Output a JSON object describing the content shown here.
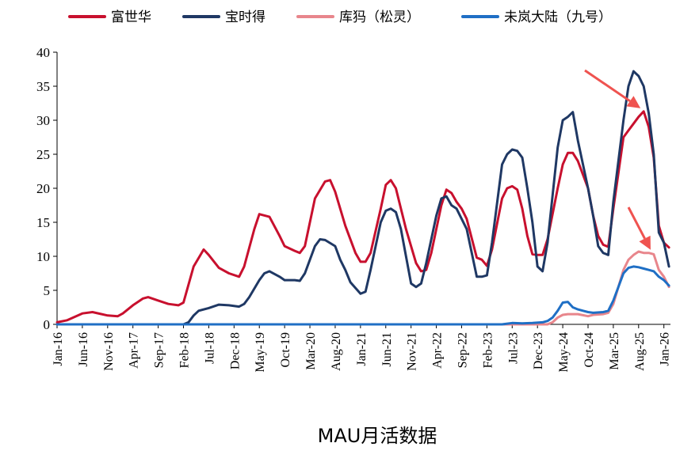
{
  "chart_data": {
    "type": "line",
    "caption": "MAU月活数据",
    "ylim": [
      0,
      40
    ],
    "yticks": [
      0,
      5,
      10,
      15,
      20,
      25,
      30,
      35,
      40
    ],
    "x_start": "Jan-16",
    "x_end": "Jan-26",
    "xticks": [
      "Jan-16",
      "Jun-16",
      "Nov-16",
      "Apr-17",
      "Sep-17",
      "Feb-18",
      "Jul-18",
      "Dec-18",
      "May-19",
      "Oct-19",
      "Mar-20",
      "Aug-20",
      "Jan-21",
      "Jun-21",
      "Nov-21",
      "Apr-22",
      "Sep-22",
      "Feb-23",
      "Jul-23",
      "Dec-23",
      "May-24",
      "Oct-24",
      "Mar-25",
      "Aug-25",
      "Jan-26"
    ],
    "legend_position": "top",
    "grid": false,
    "series": [
      {
        "name": "富世华",
        "color": "#c8102e",
        "points": [
          [
            "Jan-16",
            0.3
          ],
          [
            "Mar-16",
            0.6
          ],
          [
            "Jun-16",
            1.6
          ],
          [
            "Aug-16",
            1.8
          ],
          [
            "Nov-16",
            1.3
          ],
          [
            "Jan-17",
            1.2
          ],
          [
            "Feb-17",
            1.6
          ],
          [
            "Apr-17",
            2.8
          ],
          [
            "Jun-17",
            3.8
          ],
          [
            "Jul-17",
            4.0
          ],
          [
            "Sep-17",
            3.5
          ],
          [
            "Nov-17",
            3.0
          ],
          [
            "Jan-18",
            2.8
          ],
          [
            "Feb-18",
            3.2
          ],
          [
            "Apr-18",
            8.5
          ],
          [
            "Jun-18",
            11.0
          ],
          [
            "Jul-18",
            10.2
          ],
          [
            "Sep-18",
            8.3
          ],
          [
            "Nov-18",
            7.5
          ],
          [
            "Jan-19",
            7.0
          ],
          [
            "Feb-19",
            8.5
          ],
          [
            "Apr-19",
            14.0
          ],
          [
            "May-19",
            16.2
          ],
          [
            "Jul-19",
            15.8
          ],
          [
            "Sep-19",
            13.0
          ],
          [
            "Oct-19",
            11.5
          ],
          [
            "Dec-19",
            10.8
          ],
          [
            "Jan-20",
            10.5
          ],
          [
            "Feb-20",
            11.5
          ],
          [
            "Apr-20",
            18.5
          ],
          [
            "Jun-20",
            21.0
          ],
          [
            "Jul-20",
            21.2
          ],
          [
            "Aug-20",
            19.5
          ],
          [
            "Oct-20",
            14.5
          ],
          [
            "Dec-20",
            10.5
          ],
          [
            "Jan-21",
            9.2
          ],
          [
            "Feb-21",
            9.2
          ],
          [
            "Mar-21",
            10.5
          ],
          [
            "May-21",
            17.0
          ],
          [
            "Jun-21",
            20.5
          ],
          [
            "Jul-21",
            21.2
          ],
          [
            "Aug-21",
            20.0
          ],
          [
            "Oct-21",
            14.0
          ],
          [
            "Dec-21",
            9.0
          ],
          [
            "Jan-22",
            7.8
          ],
          [
            "Feb-22",
            8.0
          ],
          [
            "Mar-22",
            10.5
          ],
          [
            "May-22",
            17.5
          ],
          [
            "Jun-22",
            19.8
          ],
          [
            "Jul-22",
            19.3
          ],
          [
            "Aug-22",
            18.0
          ],
          [
            "Sep-22",
            17.0
          ],
          [
            "Oct-22",
            15.5
          ],
          [
            "Dec-22",
            9.8
          ],
          [
            "Jan-23",
            9.5
          ],
          [
            "Feb-23",
            8.6
          ],
          [
            "Mar-23",
            11.0
          ],
          [
            "May-23",
            18.5
          ],
          [
            "Jun-23",
            20.0
          ],
          [
            "Jul-23",
            20.3
          ],
          [
            "Aug-23",
            19.8
          ],
          [
            "Sep-23",
            17.0
          ],
          [
            "Oct-23",
            13.0
          ],
          [
            "Nov-23",
            10.3
          ],
          [
            "Dec-23",
            10.2
          ],
          [
            "Jan-24",
            10.2
          ],
          [
            "Feb-24",
            12.5
          ],
          [
            "Apr-24",
            20.0
          ],
          [
            "May-24",
            23.5
          ],
          [
            "Jun-24",
            25.2
          ],
          [
            "Jul-24",
            25.2
          ],
          [
            "Aug-24",
            24.0
          ],
          [
            "Oct-24",
            20.0
          ],
          [
            "Nov-24",
            16.0
          ],
          [
            "Dec-24",
            13.0
          ],
          [
            "Jan-25",
            11.7
          ],
          [
            "Feb-25",
            11.4
          ],
          [
            "Mar-25",
            17.0
          ],
          [
            "May-25",
            27.5
          ],
          [
            "Jun-25",
            28.5
          ],
          [
            "Jul-25",
            29.5
          ],
          [
            "Aug-25",
            30.5
          ],
          [
            "Sep-25",
            31.3
          ],
          [
            "Oct-25",
            29.0
          ],
          [
            "Nov-25",
            24.5
          ],
          [
            "Dec-25",
            14.5
          ],
          [
            "Jan-26",
            12.0
          ],
          [
            "Feb-26",
            11.3
          ]
        ]
      },
      {
        "name": "宝时得",
        "color": "#1f3864",
        "points": [
          [
            "Jan-16",
            0
          ],
          [
            "Feb-18",
            0
          ],
          [
            "Mar-18",
            0.3
          ],
          [
            "Apr-18",
            1.3
          ],
          [
            "May-18",
            2.0
          ],
          [
            "Jul-18",
            2.4
          ],
          [
            "Sep-18",
            2.9
          ],
          [
            "Nov-18",
            2.8
          ],
          [
            "Jan-19",
            2.6
          ],
          [
            "Feb-19",
            3.0
          ],
          [
            "Mar-19",
            4.0
          ],
          [
            "May-19",
            6.5
          ],
          [
            "Jun-19",
            7.5
          ],
          [
            "Jul-19",
            7.8
          ],
          [
            "Sep-19",
            7.0
          ],
          [
            "Oct-19",
            6.5
          ],
          [
            "Dec-19",
            6.5
          ],
          [
            "Jan-20",
            6.4
          ],
          [
            "Feb-20",
            7.5
          ],
          [
            "Apr-20",
            11.5
          ],
          [
            "May-20",
            12.5
          ],
          [
            "Jun-20",
            12.4
          ],
          [
            "Aug-20",
            11.5
          ],
          [
            "Sep-20",
            9.5
          ],
          [
            "Oct-20",
            8.0
          ],
          [
            "Nov-20",
            6.2
          ],
          [
            "Jan-21",
            4.5
          ],
          [
            "Feb-21",
            4.8
          ],
          [
            "Mar-21",
            8.0
          ],
          [
            "May-21",
            15.0
          ],
          [
            "Jun-21",
            16.7
          ],
          [
            "Jul-21",
            17.0
          ],
          [
            "Aug-21",
            16.5
          ],
          [
            "Sep-21",
            14.0
          ],
          [
            "Oct-21",
            10.0
          ],
          [
            "Nov-21",
            6.0
          ],
          [
            "Dec-21",
            5.5
          ],
          [
            "Jan-22",
            6.0
          ],
          [
            "Feb-22",
            9.0
          ],
          [
            "Apr-22",
            16.0
          ],
          [
            "May-22",
            18.5
          ],
          [
            "Jun-22",
            18.8
          ],
          [
            "Jul-22",
            17.5
          ],
          [
            "Aug-22",
            17.0
          ],
          [
            "Oct-22",
            14.0
          ],
          [
            "Dec-22",
            7.0
          ],
          [
            "Jan-23",
            7.0
          ],
          [
            "Feb-23",
            7.2
          ],
          [
            "Mar-23",
            12.0
          ],
          [
            "May-23",
            23.5
          ],
          [
            "Jun-23",
            25.0
          ],
          [
            "Jul-23",
            25.7
          ],
          [
            "Aug-23",
            25.5
          ],
          [
            "Sep-23",
            24.5
          ],
          [
            "Oct-23",
            20.0
          ],
          [
            "Nov-23",
            15.0
          ],
          [
            "Dec-23",
            8.5
          ],
          [
            "Jan-24",
            7.8
          ],
          [
            "Feb-24",
            12.0
          ],
          [
            "Apr-24",
            26.0
          ],
          [
            "May-24",
            30.0
          ],
          [
            "Jun-24",
            30.5
          ],
          [
            "Jul-24",
            31.2
          ],
          [
            "Aug-24",
            27.0
          ],
          [
            "Oct-24",
            20.0
          ],
          [
            "Nov-24",
            16.0
          ],
          [
            "Dec-24",
            11.5
          ],
          [
            "Jan-25",
            10.5
          ],
          [
            "Feb-25",
            10.2
          ],
          [
            "Mar-25",
            18.0
          ],
          [
            "May-25",
            30.0
          ],
          [
            "Jun-25",
            35.0
          ],
          [
            "Jul-25",
            37.2
          ],
          [
            "Aug-25",
            36.5
          ],
          [
            "Sep-25",
            35.0
          ],
          [
            "Oct-25",
            31.0
          ],
          [
            "Nov-25",
            25.0
          ],
          [
            "Dec-25",
            13.5
          ],
          [
            "Jan-26",
            12.0
          ],
          [
            "Feb-26",
            8.5
          ]
        ]
      },
      {
        "name": "库犸（松灵）",
        "color": "#e8868c",
        "points": [
          [
            "Jan-16",
            0
          ],
          [
            "Feb-24",
            0
          ],
          [
            "Mar-24",
            0.3
          ],
          [
            "Apr-24",
            1.0
          ],
          [
            "May-24",
            1.4
          ],
          [
            "Jun-24",
            1.5
          ],
          [
            "Aug-24",
            1.5
          ],
          [
            "Oct-24",
            1.2
          ],
          [
            "Nov-24",
            1.4
          ],
          [
            "Jan-25",
            1.5
          ],
          [
            "Feb-25",
            1.7
          ],
          [
            "Mar-25",
            3.0
          ],
          [
            "May-25",
            8.0
          ],
          [
            "Jun-25",
            9.5
          ],
          [
            "Jul-25",
            10.2
          ],
          [
            "Aug-25",
            10.7
          ],
          [
            "Sep-25",
            10.5
          ],
          [
            "Oct-25",
            10.5
          ],
          [
            "Nov-25",
            10.3
          ],
          [
            "Dec-25",
            8.0
          ],
          [
            "Jan-26",
            7.0
          ],
          [
            "Feb-26",
            5.5
          ]
        ]
      },
      {
        "name": "未岚大陆（九号）",
        "color": "#1f6fc5",
        "points": [
          [
            "Jan-16",
            0
          ],
          [
            "May-23",
            0
          ],
          [
            "Jul-23",
            0.2
          ],
          [
            "Sep-23",
            0.15
          ],
          [
            "Nov-23",
            0.2
          ],
          [
            "Jan-24",
            0.3
          ],
          [
            "Feb-24",
            0.5
          ],
          [
            "Mar-24",
            1.0
          ],
          [
            "Apr-24",
            2.0
          ],
          [
            "May-24",
            3.2
          ],
          [
            "Jun-24",
            3.3
          ],
          [
            "Jul-24",
            2.5
          ],
          [
            "Aug-24",
            2.2
          ],
          [
            "Sep-24",
            2.0
          ],
          [
            "Oct-24",
            1.8
          ],
          [
            "Nov-24",
            1.7
          ],
          [
            "Jan-25",
            1.8
          ],
          [
            "Feb-25",
            2.0
          ],
          [
            "Mar-25",
            3.5
          ],
          [
            "May-25",
            7.5
          ],
          [
            "Jun-25",
            8.3
          ],
          [
            "Jul-25",
            8.5
          ],
          [
            "Aug-25",
            8.4
          ],
          [
            "Sep-25",
            8.2
          ],
          [
            "Oct-25",
            8.0
          ],
          [
            "Nov-25",
            7.8
          ],
          [
            "Dec-25",
            7.0
          ],
          [
            "Jan-26",
            6.5
          ],
          [
            "Feb-26",
            5.7
          ]
        ]
      }
    ],
    "annotations": [
      {
        "type": "arrow",
        "color": "#ef5350",
        "target": [
          "Sep-25",
          31.3
        ]
      },
      {
        "type": "arrow",
        "color": "#ef5350",
        "target": [
          "Nov-25",
          10.5
        ]
      }
    ]
  }
}
